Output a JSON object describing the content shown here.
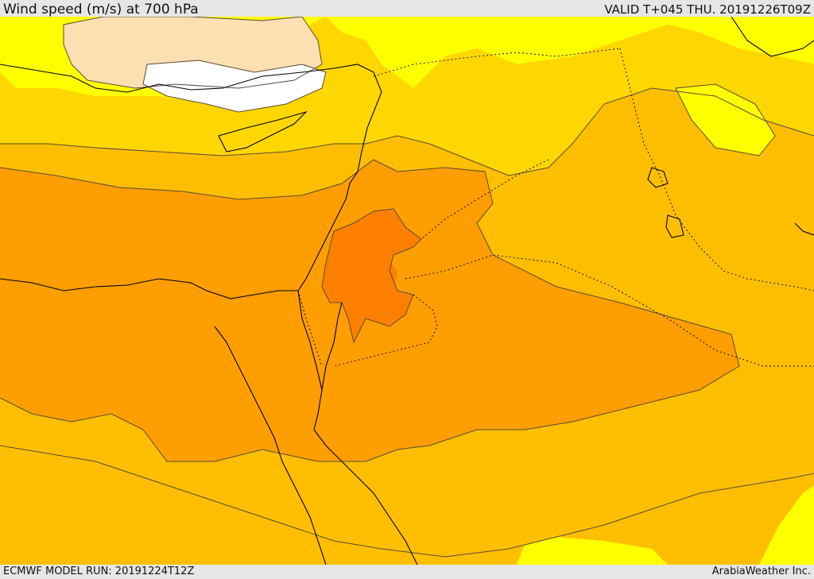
{
  "header": {
    "title": "Wind speed (m/s) at 700 hPa",
    "valid": "VALID T+045 THU. 20191226T09Z"
  },
  "footer": {
    "model_run": "ECMWF MODEL RUN: 20191224T12Z",
    "credit": "ArabiaWeather Inc."
  },
  "palette": {
    "calm_white": "#ffffff",
    "beige": "#fde0b2",
    "light_yellow": "#ffff00",
    "yellow": "#ffd700",
    "amber": "#ffbf00",
    "orange": "#ff9e00",
    "dark_orange": "#ff8000",
    "contour_line": "#5a4a3a",
    "coastline": "#000000"
  }
}
